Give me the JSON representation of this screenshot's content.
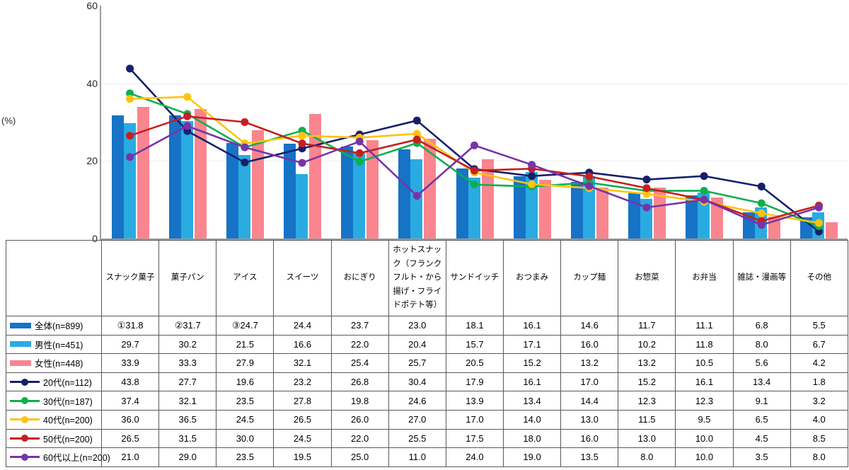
{
  "chart_data": {
    "type": "bar+line",
    "title": "",
    "unit_label": "(%)",
    "ylim": [
      0,
      60
    ],
    "yticks": [
      0,
      20,
      40,
      60
    ],
    "gridline_values": [
      20,
      40
    ],
    "grid": "horizontal-light",
    "legend_position": "table-left-column",
    "categories": [
      "スナック菓子",
      "菓子パン",
      "アイス",
      "スイーツ",
      "おにぎり",
      "ホットスナック（フランクフルト・から揚げ・フライドポテト等）",
      "サンドイッチ",
      "おつまみ",
      "カップ麺",
      "お惣菜",
      "お弁当",
      "雑誌・漫画等",
      "その他"
    ],
    "bar_series": [
      {
        "key": "overall",
        "name": "全体(n=899)",
        "color": "#1673C6",
        "values": [
          31.8,
          31.7,
          24.7,
          24.4,
          23.7,
          23.0,
          18.1,
          16.1,
          14.6,
          11.7,
          11.1,
          6.8,
          5.5
        ],
        "prefixes": [
          "①",
          "②",
          "③"
        ]
      },
      {
        "key": "male",
        "name": "男性(n=451)",
        "color": "#29ABE2",
        "values": [
          29.7,
          30.2,
          21.5,
          16.6,
          22.0,
          20.4,
          15.7,
          17.1,
          16.0,
          10.2,
          11.8,
          8.0,
          6.7
        ]
      },
      {
        "key": "female",
        "name": "女性(n=448)",
        "color": "#F9858F",
        "values": [
          33.9,
          33.3,
          27.9,
          32.1,
          25.4,
          25.7,
          20.5,
          15.2,
          13.2,
          13.2,
          10.5,
          5.6,
          4.2
        ]
      }
    ],
    "line_series": [
      {
        "key": "age20s",
        "name": "20代(n=112)",
        "color": "#16206B",
        "values": [
          43.8,
          27.7,
          19.6,
          23.2,
          26.8,
          30.4,
          17.9,
          16.1,
          17.0,
          15.2,
          16.1,
          13.4,
          1.8
        ]
      },
      {
        "key": "age30s",
        "name": "30代(n=187)",
        "color": "#0DAF4E",
        "values": [
          37.4,
          32.1,
          23.5,
          27.8,
          19.8,
          24.6,
          13.9,
          13.4,
          14.4,
          12.3,
          12.3,
          9.1,
          3.2
        ]
      },
      {
        "key": "age40s",
        "name": "40代(n=200)",
        "color": "#FFC30E",
        "values": [
          36.0,
          36.5,
          24.5,
          26.5,
          26.0,
          27.0,
          17.0,
          14.0,
          13.0,
          11.5,
          9.5,
          6.5,
          4.0
        ]
      },
      {
        "key": "age50s",
        "name": "50代(n=200)",
        "color": "#C42020",
        "values": [
          26.5,
          31.5,
          30.0,
          24.5,
          22.0,
          25.5,
          17.5,
          18.0,
          16.0,
          13.0,
          10.0,
          4.5,
          8.5
        ]
      },
      {
        "key": "age60s",
        "name": "60代以上(n=200)",
        "color": "#7734A8",
        "values": [
          21.0,
          29.0,
          23.5,
          19.5,
          25.0,
          11.0,
          24.0,
          19.0,
          13.5,
          8.0,
          10.0,
          3.5,
          8.0
        ]
      }
    ]
  }
}
